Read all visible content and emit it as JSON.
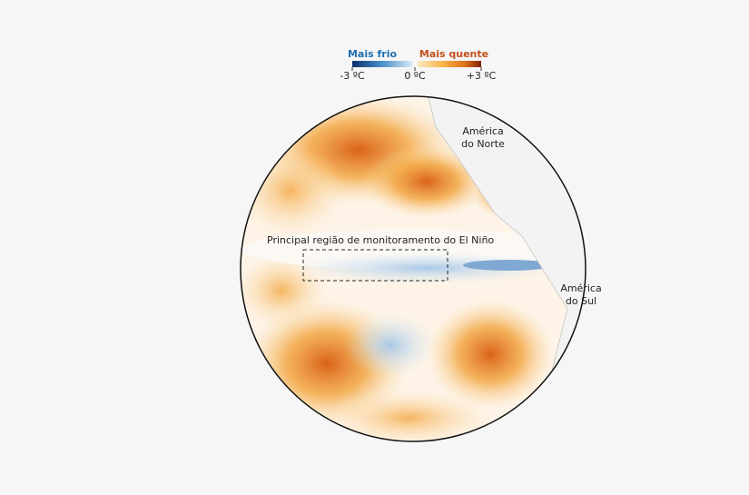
{
  "legend": {
    "cold_label": "Mais frio",
    "warm_label": "Mais quente",
    "ticks": [
      "-3 ºC",
      "0 ºC",
      "+3 ºC"
    ]
  },
  "labels": {
    "north_america": [
      "América",
      "do Norte"
    ],
    "south_america": [
      "América",
      "do Sul"
    ],
    "monitoring_region": "Principal região de monitoramento do El Niño"
  }
}
